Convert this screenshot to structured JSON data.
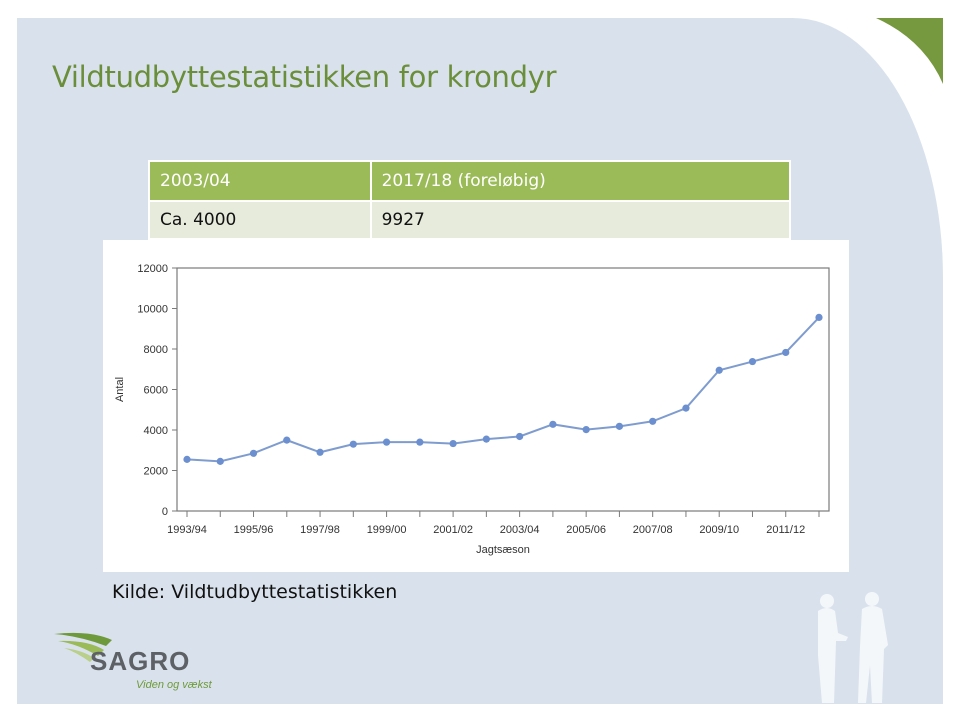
{
  "slide": {
    "title": "Vildtudbyttestatistikken for krondyr",
    "source": "Kilde: Vildtudbyttestatistikken",
    "colors": {
      "panel": "#d9e2ec",
      "accent_green": "#6b8e3a",
      "table_header": "#9bbb59",
      "table_row": "#e6ebdc",
      "series": "#6b8fcf"
    }
  },
  "summary_table": {
    "headers": [
      "2003/04",
      "2017/18 (foreløbig)"
    ],
    "rows": [
      [
        "Ca. 4000",
        "9927"
      ]
    ]
  },
  "logo": {
    "name": "SAGRO",
    "tagline": "Viden og vækst"
  },
  "chart_data": {
    "type": "line",
    "title": "",
    "xlabel": "Jagtsæson",
    "ylabel": "Antal",
    "ylim": [
      0,
      12000
    ],
    "yticks": [
      0,
      2000,
      4000,
      6000,
      8000,
      10000,
      12000
    ],
    "xtick_labels": [
      "1993/94",
      "1995/96",
      "1997/98",
      "1999/00",
      "2001/02",
      "2003/04",
      "2005/06",
      "2007/08",
      "2009/10",
      "2011/12"
    ],
    "grid": false,
    "legend": null,
    "categories": [
      "1993/94",
      "1994/95",
      "1995/96",
      "1996/97",
      "1997/98",
      "1998/99",
      "1999/00",
      "2000/01",
      "2001/02",
      "2002/03",
      "2003/04",
      "2004/05",
      "2005/06",
      "2006/07",
      "2007/08",
      "2008/09",
      "2009/10",
      "2010/11",
      "2011/12",
      "2012/13"
    ],
    "series": [
      {
        "name": "Krondyr",
        "values": [
          2550,
          2450,
          2850,
          3500,
          2900,
          3300,
          3400,
          3400,
          3330,
          3550,
          3680,
          4280,
          4020,
          4180,
          4430,
          5080,
          6950,
          7380,
          7830,
          9560
        ]
      }
    ]
  }
}
